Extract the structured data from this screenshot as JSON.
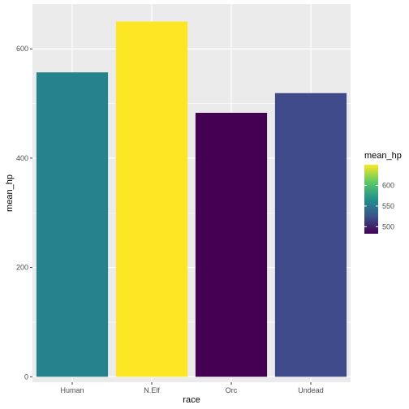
{
  "chart_data": {
    "type": "bar",
    "categories": [
      "Human",
      "N.Elf",
      "Orc",
      "Undead"
    ],
    "values": [
      557,
      650,
      483,
      519
    ],
    "xlabel": "race",
    "ylabel": "mean_hp",
    "ylim": [
      -10,
      682
    ],
    "yticks": [
      0,
      200,
      400,
      600
    ],
    "grid": true,
    "legend": {
      "title": "mean_hp",
      "placement": "right",
      "range": [
        483,
        650
      ],
      "ticks": [
        500,
        550,
        600
      ],
      "colors": [
        "#440154",
        "#3b528b",
        "#21908c",
        "#5dc963",
        "#fde725"
      ]
    },
    "bar_colors": [
      "#25838e",
      "#fde725",
      "#440154",
      "#3e4a89"
    ],
    "panel_background": "#ebebeb",
    "grid_color": "#ffffff"
  }
}
